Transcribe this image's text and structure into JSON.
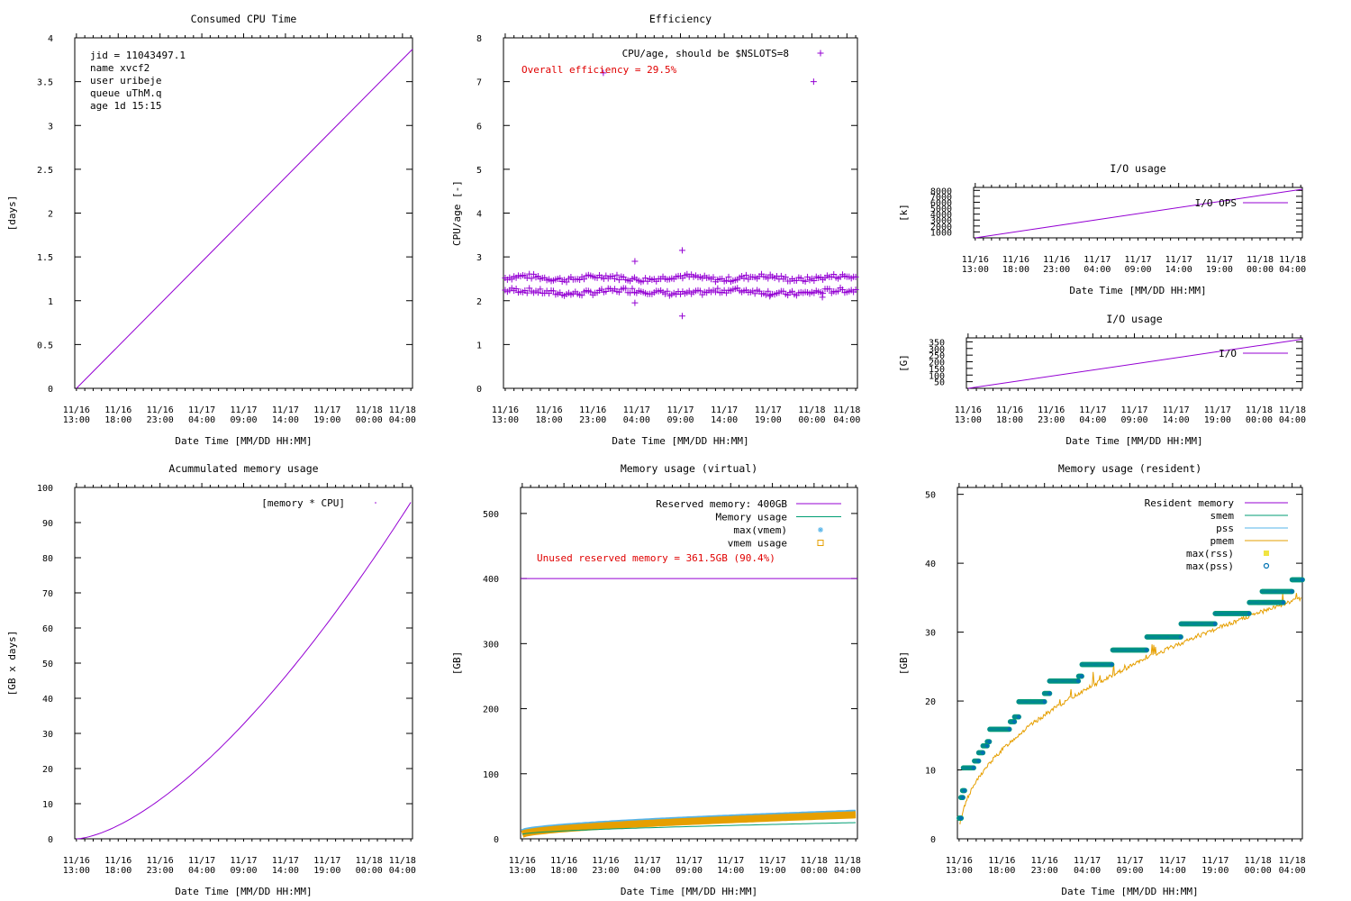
{
  "colors": {
    "purple": "#9400d3",
    "green": "#009e73",
    "cyan": "#56b4e9",
    "orange": "#e69f00",
    "yellow": "#f0e442",
    "blue": "#0072b2",
    "red": "#e00000"
  },
  "shared": {
    "xlabel": "Date Time [MM/DD HH:MM]",
    "xticks": [
      {
        "date": "11/16",
        "time": "13:00",
        "h": 0
      },
      {
        "date": "11/16",
        "time": "18:00",
        "h": 5
      },
      {
        "date": "11/16",
        "time": "23:00",
        "h": 10
      },
      {
        "date": "11/17",
        "time": "04:00",
        "h": 15
      },
      {
        "date": "11/17",
        "time": "09:00",
        "h": 20
      },
      {
        "date": "11/17",
        "time": "14:00",
        "h": 25
      },
      {
        "date": "11/17",
        "time": "19:00",
        "h": 30
      },
      {
        "date": "11/18",
        "time": "00:00",
        "h": 35
      },
      {
        "date": "11/18",
        "time": "04:00",
        "h": 39
      }
    ],
    "xrange_hours": [
      -0.2,
      40.2
    ]
  },
  "chart_data": [
    {
      "id": "cpu",
      "type": "line",
      "title": "Consumed CPU Time",
      "ylabel": "[days]",
      "ylim": [
        0,
        4
      ],
      "yticks": [
        "0",
        "0.5",
        "1",
        "1.5",
        "2",
        "2.5",
        "3",
        "3.5",
        "4"
      ],
      "info": [
        "jid   = 11043497.1",
        "name  xvcf2",
        "user  uribeje",
        "queue uThM.q",
        "age   1d 15:15"
      ],
      "series": [
        {
          "name": "CPU time",
          "x_hours": [
            0,
            40.2
          ],
          "values": [
            0,
            3.87
          ]
        }
      ]
    },
    {
      "id": "eff",
      "type": "scatter",
      "title": "Efficiency",
      "ylabel": "CPU/age [-]",
      "ylim": [
        0,
        8
      ],
      "yticks": [
        "0",
        "1",
        "2",
        "3",
        "4",
        "5",
        "6",
        "7",
        "8"
      ],
      "legend": "CPU/age, should be $NSLOTS=8",
      "annotation": "Overall efficiency = 29.5%",
      "band_upper_mean": 2.52,
      "band_lower_mean": 2.2,
      "outliers": [
        [
          11.2,
          7.2
        ],
        [
          14.8,
          2.9
        ],
        [
          14.8,
          1.95
        ],
        [
          20.2,
          3.15
        ],
        [
          20.2,
          1.65
        ],
        [
          35.2,
          7.0
        ],
        [
          36.2,
          2.08
        ],
        [
          30.2,
          2.1
        ]
      ]
    },
    {
      "id": "ioops",
      "type": "line",
      "title": "I/O usage",
      "ylabel": "[k]",
      "ylim": [
        0,
        8500
      ],
      "yticks": [
        "1000",
        "2000",
        "3000",
        "4000",
        "5000",
        "6000",
        "7000",
        "8000"
      ],
      "legend": "I/O OPS",
      "series": [
        {
          "name": "I/O OPS",
          "x_hours": [
            0,
            40.2
          ],
          "values": [
            0,
            8200
          ]
        }
      ]
    },
    {
      "id": "io",
      "type": "line",
      "title": "I/O usage",
      "ylabel": "[G]",
      "ylim": [
        0,
        380
      ],
      "yticks": [
        "50",
        "100",
        "150",
        "200",
        "250",
        "300",
        "350"
      ],
      "legend": "I/O",
      "series": [
        {
          "name": "I/O",
          "x_hours": [
            0,
            40.2
          ],
          "values": [
            0,
            370
          ]
        }
      ]
    },
    {
      "id": "accmem",
      "type": "line",
      "title": "Acummulated memory usage",
      "ylabel": "[GB x days]",
      "ylim": [
        0,
        100
      ],
      "yticks": [
        "0",
        "10",
        "20",
        "30",
        "40",
        "50",
        "60",
        "70",
        "80",
        "90",
        "100"
      ],
      "legend": "[memory * CPU]",
      "series": [
        {
          "name": "[memory * CPU]",
          "end_value": 96.5,
          "exponent": 1.55
        }
      ]
    },
    {
      "id": "vmem",
      "type": "line",
      "title": "Memory usage (virtual)",
      "ylabel": "[GB]",
      "ylim": [
        0,
        540
      ],
      "yticks": [
        "0",
        "100",
        "200",
        "300",
        "400",
        "500"
      ],
      "legend": [
        "Reserved memory: 400GB",
        "Memory usage",
        "max(vmem)",
        "vmem usage"
      ],
      "annotation": "Unused reserved memory = 361.5GB (90.4%)",
      "reserved": 400,
      "memory_usage": {
        "start": 7,
        "end": 25
      },
      "vmem": {
        "start": 7,
        "end": 37
      },
      "max_vmem": {
        "start": 10,
        "end": 40
      }
    },
    {
      "id": "rmem",
      "type": "scatter",
      "title": "Memory usage (resident)",
      "ylabel": "[GB]",
      "ylim": [
        0,
        51
      ],
      "yticks": [
        "0",
        "10",
        "20",
        "30",
        "40",
        "50"
      ],
      "legend": [
        "Resident memory",
        "smem",
        "pss",
        "pmem",
        "max(rss)",
        "max(pss)"
      ],
      "steps": [
        [
          0,
          0.3,
          3
        ],
        [
          0.2,
          0.5,
          6
        ],
        [
          0.4,
          0.7,
          7
        ],
        [
          0.5,
          1.8,
          10.3
        ],
        [
          1.8,
          2.3,
          11.3
        ],
        [
          2.3,
          2.8,
          12.5
        ],
        [
          2.8,
          3.3,
          13.5
        ],
        [
          3.3,
          3.6,
          14.1
        ],
        [
          3.6,
          6.0,
          15.9
        ],
        [
          6.0,
          6.5,
          17
        ],
        [
          6.5,
          7.0,
          17.7
        ],
        [
          7.0,
          10.0,
          19.9
        ],
        [
          10.0,
          10.6,
          21.1
        ],
        [
          10.6,
          14.0,
          22.9
        ],
        [
          14.0,
          14.4,
          23.6
        ],
        [
          14.4,
          18.0,
          25.3
        ],
        [
          18.0,
          22.0,
          27.4
        ],
        [
          22.0,
          26.0,
          29.3
        ],
        [
          26.0,
          30.0,
          31.2
        ],
        [
          30.0,
          34.0,
          32.7
        ],
        [
          34.0,
          38.0,
          34.3
        ],
        [
          35.5,
          39.0,
          35.9
        ],
        [
          39.0,
          40.2,
          37.6
        ]
      ],
      "pmem": {
        "start": 5,
        "end": 35
      }
    }
  ]
}
